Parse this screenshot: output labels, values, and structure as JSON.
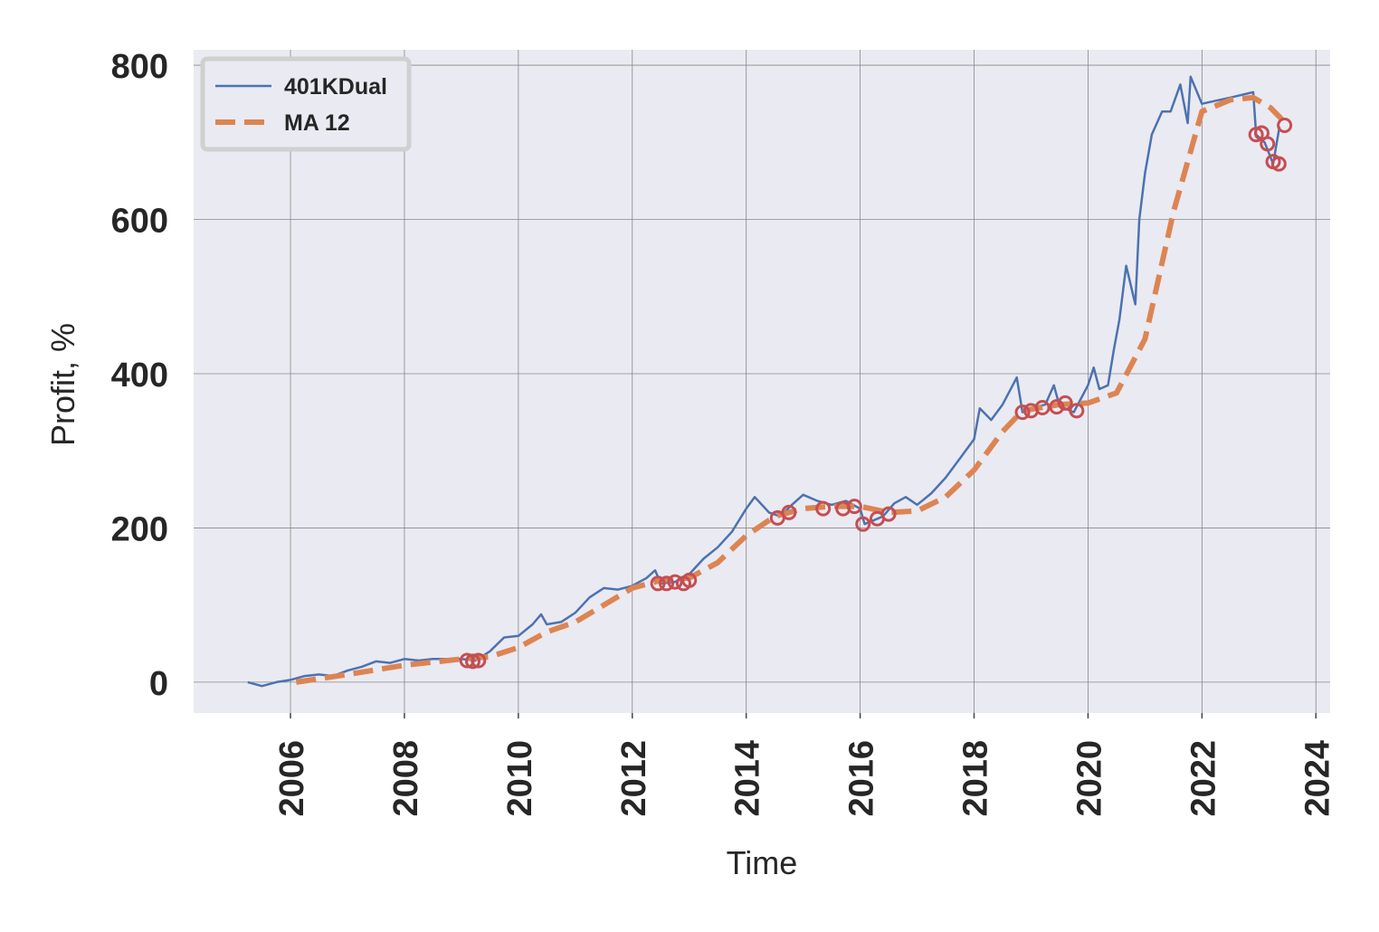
{
  "chart_data": {
    "type": "line",
    "xlabel": "Time",
    "ylabel": "Profit, %",
    "xlim": [
      2004.3,
      2024.25
    ],
    "xticks": [
      2006,
      2008,
      2010,
      2012,
      2014,
      2016,
      2018,
      2020,
      2022,
      2024
    ],
    "ylim": [
      -40,
      820
    ],
    "yticks": [
      0,
      200,
      400,
      600,
      800
    ],
    "grid": true,
    "legend": "upper left",
    "series": [
      {
        "name": "401KDual",
        "color": "#4c72b0",
        "style": "solid",
        "x": [
          2005.25,
          2005.5,
          2005.75,
          2006,
          2006.25,
          2006.5,
          2006.75,
          2007,
          2007.25,
          2007.5,
          2007.75,
          2008,
          2008.25,
          2008.5,
          2008.75,
          2009,
          2009.25,
          2009.5,
          2009.75,
          2010,
          2010.25,
          2010.4,
          2010.5,
          2010.75,
          2011,
          2011.25,
          2011.5,
          2011.75,
          2012,
          2012.25,
          2012.4,
          2012.5,
          2012.75,
          2013,
          2013.25,
          2013.5,
          2013.75,
          2014,
          2014.15,
          2014.4,
          2014.6,
          2014.8,
          2015,
          2015.25,
          2015.5,
          2015.75,
          2016,
          2016.08,
          2016.4,
          2016.6,
          2016.8,
          2017,
          2017.25,
          2017.5,
          2017.75,
          2018,
          2018.1,
          2018.3,
          2018.5,
          2018.75,
          2018.85,
          2019,
          2019.25,
          2019.4,
          2019.5,
          2019.75,
          2020,
          2020.1,
          2020.2,
          2020.35,
          2020.45,
          2020.55,
          2020.67,
          2020.83,
          2020.9,
          2021,
          2021.12,
          2021.3,
          2021.45,
          2021.62,
          2021.75,
          2021.8,
          2022,
          2022.5,
          2022.9,
          2022.95,
          2023.1,
          2023.25,
          2023.36
        ],
        "values": [
          0,
          -5,
          0,
          3,
          8,
          10,
          8,
          15,
          20,
          27,
          25,
          30,
          28,
          30,
          30,
          30,
          28,
          40,
          58,
          60,
          75,
          88,
          75,
          78,
          90,
          110,
          122,
          120,
          125,
          135,
          145,
          128,
          130,
          140,
          160,
          175,
          195,
          225,
          240,
          220,
          215,
          230,
          243,
          235,
          230,
          235,
          225,
          205,
          215,
          232,
          240,
          230,
          245,
          265,
          290,
          315,
          355,
          340,
          360,
          395,
          350,
          355,
          360,
          385,
          358,
          350,
          385,
          408,
          380,
          385,
          430,
          470,
          540,
          490,
          600,
          660,
          710,
          740,
          740,
          775,
          725,
          785,
          750,
          758,
          765,
          710,
          700,
          672,
          720
        ]
      },
      {
        "name": "MA 12",
        "color": "#dd8452",
        "style": "dashed",
        "x": [
          2006.1,
          2007,
          2008,
          2009,
          2009.5,
          2010,
          2010.5,
          2011,
          2011.5,
          2012,
          2012.5,
          2013,
          2013.5,
          2014,
          2014.5,
          2015,
          2015.5,
          2016,
          2016.5,
          2017,
          2017.5,
          2018,
          2018.5,
          2018.85,
          2019.5,
          2020,
          2020.5,
          2021,
          2021.5,
          2022,
          2022.5,
          2022.9,
          2023.2,
          2023.4
        ],
        "values": [
          0,
          10,
          22,
          30,
          33,
          45,
          65,
          78,
          100,
          122,
          132,
          135,
          155,
          190,
          215,
          225,
          228,
          228,
          220,
          222,
          240,
          275,
          325,
          352,
          360,
          362,
          375,
          445,
          610,
          740,
          755,
          758,
          745,
          730
        ]
      },
      {
        "color": "#c44e52",
        "style": "markers",
        "x": [
          2009.1,
          2009.2,
          2009.3,
          2012.45,
          2012.6,
          2012.75,
          2012.9,
          2013.0,
          2014.55,
          2014.75,
          2015.35,
          2015.7,
          2015.9,
          2016.05,
          2016.3,
          2016.5,
          2018.85,
          2019.0,
          2019.2,
          2019.45,
          2019.6,
          2019.8,
          2022.95,
          2023.05,
          2023.15,
          2023.25,
          2023.35,
          2023.45
        ],
        "values": [
          28,
          27,
          28,
          128,
          128,
          130,
          128,
          132,
          213,
          220,
          225,
          225,
          228,
          205,
          212,
          218,
          350,
          352,
          356,
          357,
          362,
          352,
          710,
          712,
          698,
          675,
          672,
          722
        ]
      }
    ]
  }
}
